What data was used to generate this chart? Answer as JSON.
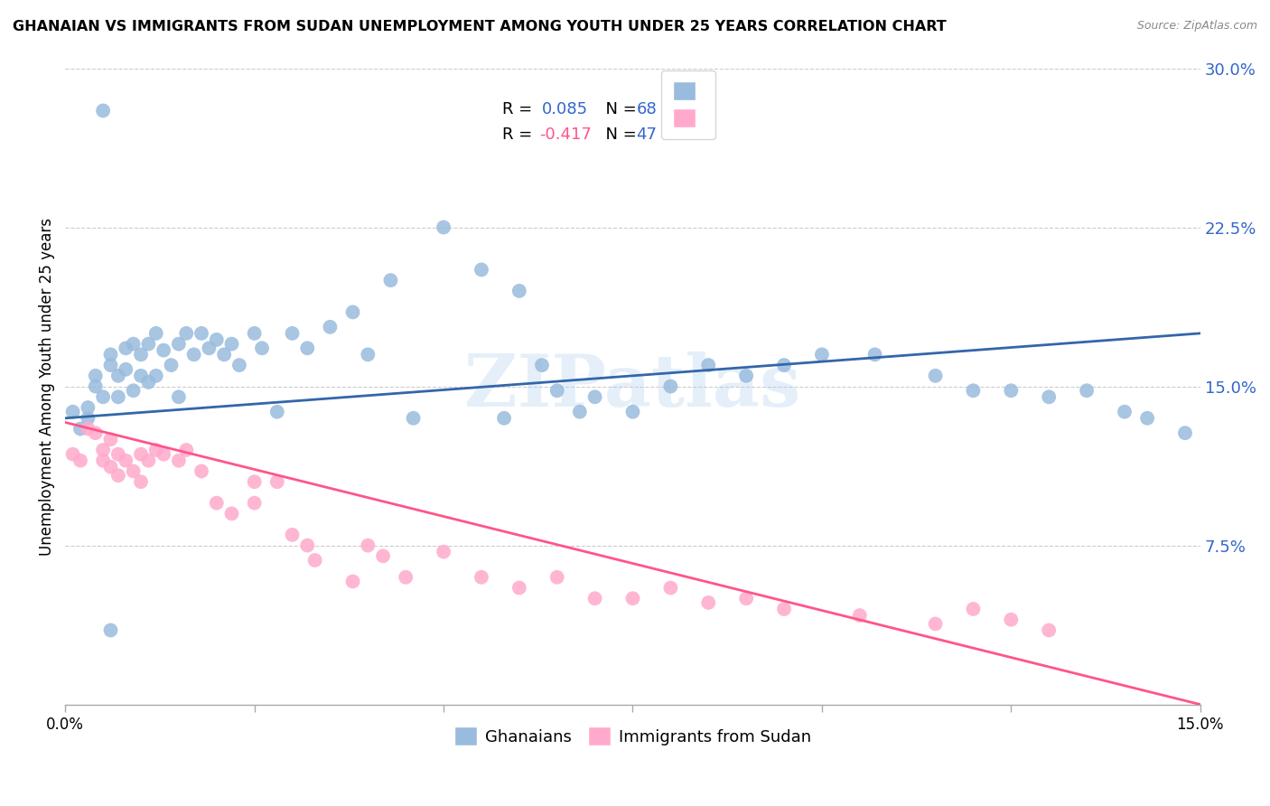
{
  "title": "GHANAIAN VS IMMIGRANTS FROM SUDAN UNEMPLOYMENT AMONG YOUTH UNDER 25 YEARS CORRELATION CHART",
  "source": "Source: ZipAtlas.com",
  "ylabel": "Unemployment Among Youth under 25 years",
  "xmin": 0.0,
  "xmax": 0.15,
  "ymin": 0.0,
  "ymax": 0.3,
  "yticks": [
    0.0,
    0.075,
    0.15,
    0.225,
    0.3
  ],
  "ytick_labels": [
    "",
    "7.5%",
    "15.0%",
    "22.5%",
    "30.0%"
  ],
  "watermark": "ZIPatlas",
  "blue_color": "#99BBDD",
  "pink_color": "#FFAACC",
  "blue_line_color": "#3366AA",
  "pink_line_color": "#FF5588",
  "blue_text_color": "#3366CC",
  "legend_r1_label": "R =  0.085",
  "legend_n1_label": "N = 68",
  "legend_r2_label": "R = -0.417",
  "legend_n2_label": "N = 47",
  "ghanaian_x": [
    0.001,
    0.002,
    0.003,
    0.003,
    0.004,
    0.004,
    0.005,
    0.005,
    0.006,
    0.006,
    0.007,
    0.007,
    0.008,
    0.008,
    0.009,
    0.009,
    0.01,
    0.01,
    0.011,
    0.011,
    0.012,
    0.012,
    0.013,
    0.014,
    0.015,
    0.015,
    0.016,
    0.017,
    0.018,
    0.019,
    0.02,
    0.021,
    0.022,
    0.023,
    0.025,
    0.026,
    0.028,
    0.03,
    0.032,
    0.035,
    0.038,
    0.04,
    0.043,
    0.046,
    0.05,
    0.055,
    0.058,
    0.06,
    0.063,
    0.065,
    0.068,
    0.07,
    0.075,
    0.08,
    0.085,
    0.09,
    0.095,
    0.1,
    0.107,
    0.115,
    0.12,
    0.125,
    0.13,
    0.135,
    0.14,
    0.143,
    0.148,
    0.006
  ],
  "ghanaian_y": [
    0.138,
    0.13,
    0.135,
    0.14,
    0.15,
    0.155,
    0.28,
    0.145,
    0.16,
    0.165,
    0.155,
    0.145,
    0.168,
    0.158,
    0.17,
    0.148,
    0.165,
    0.155,
    0.17,
    0.152,
    0.175,
    0.155,
    0.167,
    0.16,
    0.17,
    0.145,
    0.175,
    0.165,
    0.175,
    0.168,
    0.172,
    0.165,
    0.17,
    0.16,
    0.175,
    0.168,
    0.138,
    0.175,
    0.168,
    0.178,
    0.185,
    0.165,
    0.2,
    0.135,
    0.225,
    0.205,
    0.135,
    0.195,
    0.16,
    0.148,
    0.138,
    0.145,
    0.138,
    0.15,
    0.16,
    0.155,
    0.16,
    0.165,
    0.165,
    0.155,
    0.148,
    0.148,
    0.145,
    0.148,
    0.138,
    0.135,
    0.128,
    0.035
  ],
  "sudan_x": [
    0.001,
    0.002,
    0.003,
    0.004,
    0.005,
    0.005,
    0.006,
    0.006,
    0.007,
    0.007,
    0.008,
    0.009,
    0.01,
    0.01,
    0.011,
    0.012,
    0.013,
    0.015,
    0.016,
    0.018,
    0.02,
    0.022,
    0.025,
    0.025,
    0.028,
    0.03,
    0.032,
    0.033,
    0.038,
    0.04,
    0.042,
    0.045,
    0.05,
    0.055,
    0.06,
    0.065,
    0.07,
    0.075,
    0.08,
    0.085,
    0.09,
    0.095,
    0.105,
    0.115,
    0.12,
    0.125,
    0.13
  ],
  "sudan_y": [
    0.118,
    0.115,
    0.13,
    0.128,
    0.12,
    0.115,
    0.125,
    0.112,
    0.118,
    0.108,
    0.115,
    0.11,
    0.118,
    0.105,
    0.115,
    0.12,
    0.118,
    0.115,
    0.12,
    0.11,
    0.095,
    0.09,
    0.095,
    0.105,
    0.105,
    0.08,
    0.075,
    0.068,
    0.058,
    0.075,
    0.07,
    0.06,
    0.072,
    0.06,
    0.055,
    0.06,
    0.05,
    0.05,
    0.055,
    0.048,
    0.05,
    0.045,
    0.042,
    0.038,
    0.045,
    0.04,
    0.035
  ],
  "gh_line_x": [
    0.0,
    0.15
  ],
  "gh_line_y": [
    0.135,
    0.175
  ],
  "sd_line_x": [
    0.0,
    0.15
  ],
  "sd_line_y": [
    0.133,
    0.0
  ]
}
